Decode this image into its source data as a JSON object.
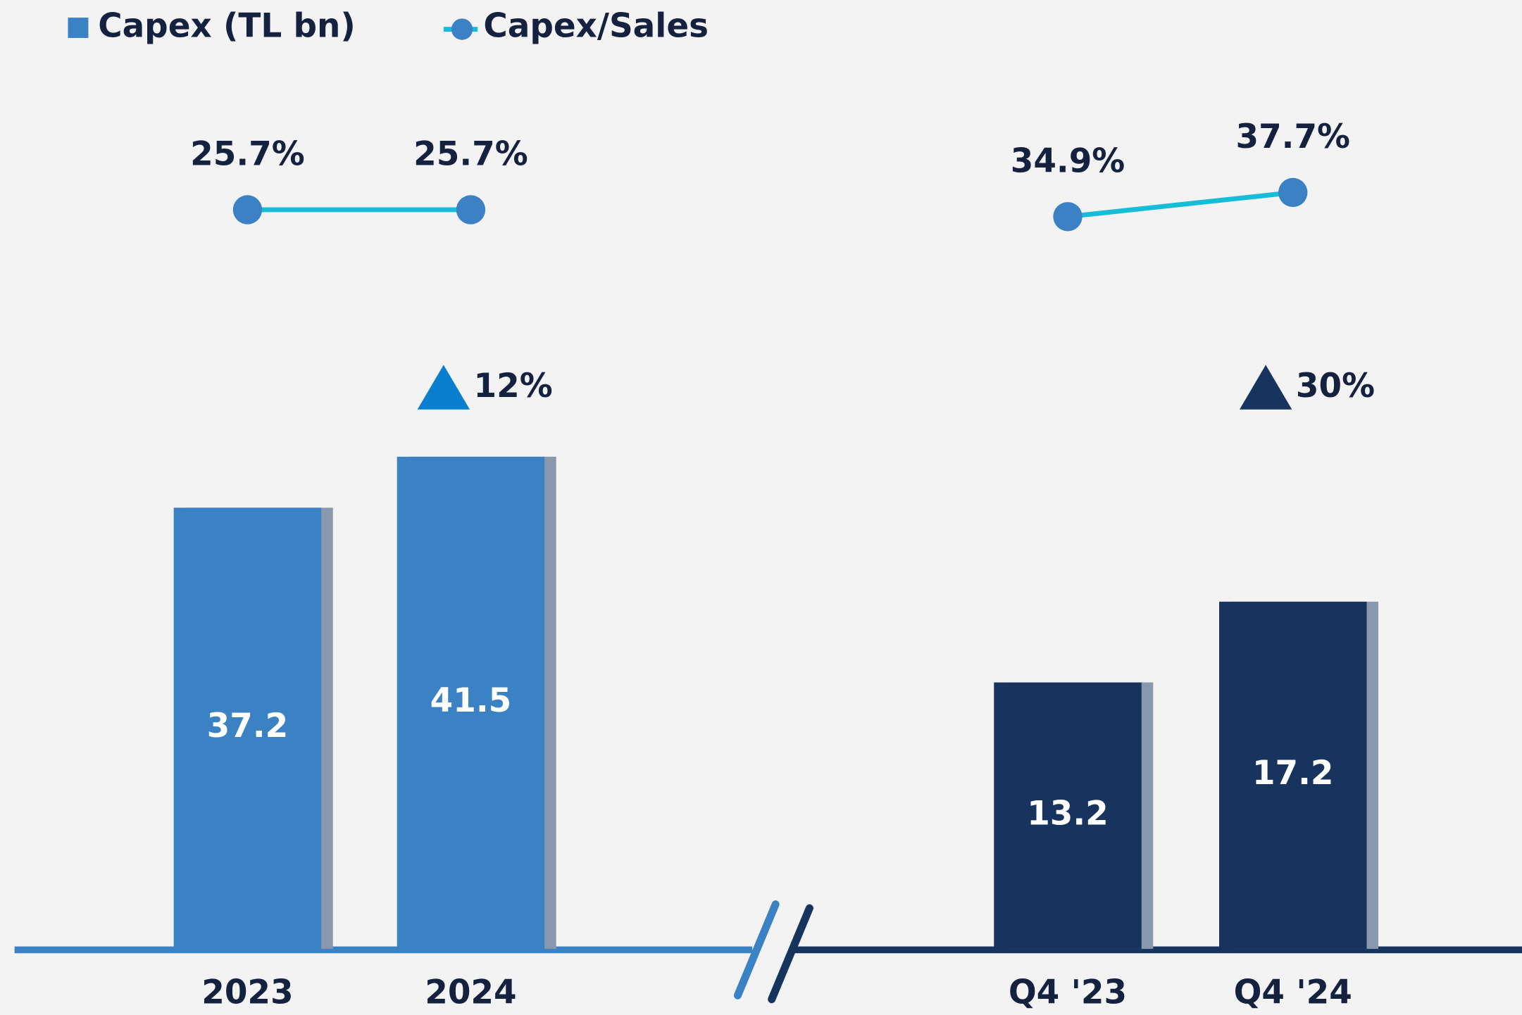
{
  "chart_data": [
    {
      "type": "bar_line",
      "categories": [
        "2023",
        "2024"
      ],
      "series": [
        {
          "name": "Capex (TL bn)",
          "color": "#3a82c4",
          "values": [
            37.2,
            41.5
          ]
        },
        {
          "name": "Capex/Sales",
          "color": "#17bcd9",
          "marker_color": "#3b82c4",
          "axis": "y2",
          "values": [
            25.7,
            25.7
          ],
          "value_labels": [
            "25.7%",
            "25.7%"
          ]
        }
      ],
      "annotation": "12%",
      "annotation_color": "#0a7fcf",
      "ylim": [
        0,
        80
      ],
      "y2lim": [
        -60,
        50
      ]
    },
    {
      "type": "bar_line",
      "categories": [
        "Q4 '23",
        "Q4 '24"
      ],
      "series": [
        {
          "color": "#16345e",
          "values": [
            13.2,
            17.2
          ]
        },
        {
          "color": "#17bcd9",
          "marker_color": "#3b82c4",
          "axis": "y2",
          "values": [
            34.9,
            37.7
          ],
          "value_labels": [
            "34.9%",
            "37.7%"
          ]
        }
      ],
      "annotation": "30%",
      "annotation_color": "#16345e",
      "ylim": [
        0,
        47
      ],
      "y2lim": [
        -50,
        60
      ]
    }
  ]
}
